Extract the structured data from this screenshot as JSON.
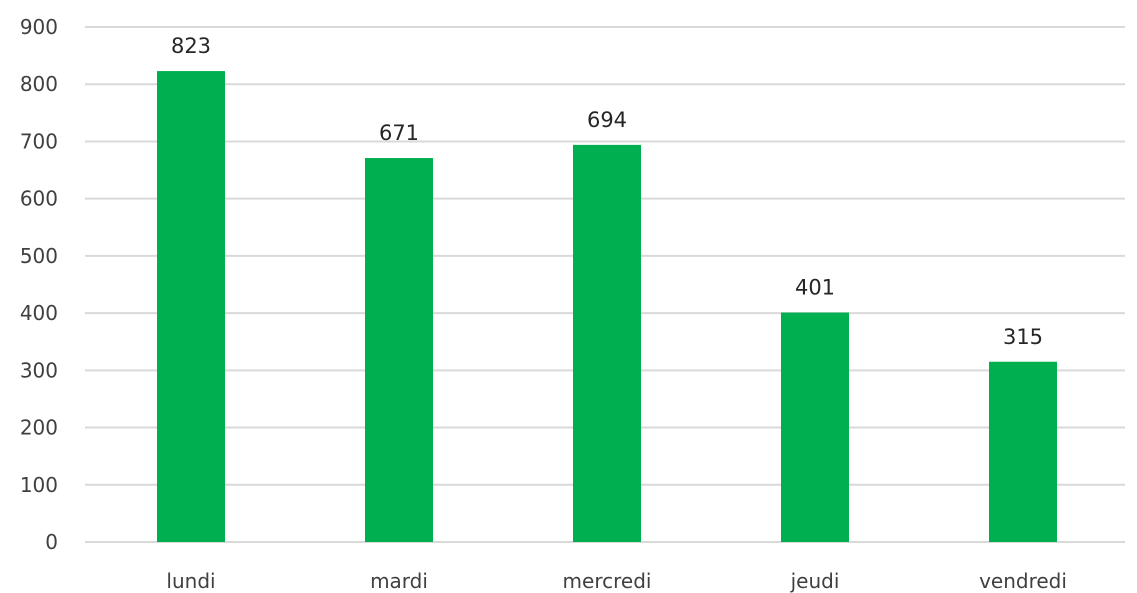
{
  "chart_data": {
    "type": "bar",
    "title": "",
    "xlabel": "",
    "ylabel": "",
    "categories": [
      "lundi",
      "mardi",
      "mercredi",
      "jeudi",
      "vendredi"
    ],
    "values": [
      823,
      671,
      694,
      401,
      315
    ],
    "data_labels": [
      "823",
      "671",
      "694",
      "401",
      "315"
    ],
    "ylim": [
      0,
      900
    ],
    "yticks": [
      0,
      100,
      200,
      300,
      400,
      500,
      600,
      700,
      800,
      900
    ],
    "ytick_labels": [
      "0",
      "100",
      "200",
      "300",
      "400",
      "500",
      "600",
      "700",
      "800",
      "900"
    ],
    "grid": true,
    "legend": "none",
    "bar_color": "#00b050",
    "grid_color": "#d9d9d9",
    "text_color": "#404040"
  }
}
